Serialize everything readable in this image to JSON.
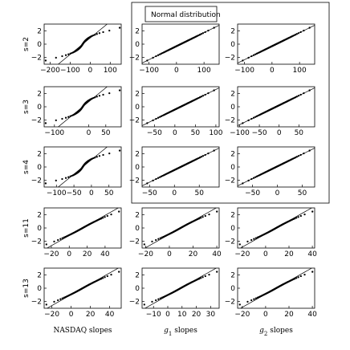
{
  "legend": {
    "label": "Normal distribution"
  },
  "row_labels": [
    "s=2",
    "s=3",
    "s=4",
    "s=11",
    "s=13"
  ],
  "column_labels": [
    {
      "main": "NASDAQ slopes",
      "sub": ""
    },
    {
      "main": "g",
      "sub": "1",
      "rest": " slopes"
    },
    {
      "main": "g",
      "sub": "2",
      "rest": " slopes"
    }
  ],
  "chart_data": {
    "type": "scatter",
    "description_of_axes": "Q-Q plots: x = sample quantiles of slopes, y = standard normal quantiles",
    "ylim": [
      -3,
      3
    ],
    "yticks": [
      -2,
      0,
      2
    ],
    "grid": false,
    "panels": [
      {
        "row": 0,
        "col": 0,
        "xlim": [
          -230,
          155
        ],
        "xticks": [
          -200,
          -100,
          0,
          100
        ],
        "xtick_labels": [
          "-200",
          "-100",
          "0",
          "100"
        ],
        "shape": "heavy"
      },
      {
        "row": 0,
        "col": 1,
        "xlim": [
          -125,
          155
        ],
        "xticks": [
          -100,
          0,
          100
        ],
        "xtick_labels": [
          "-100",
          "0",
          "100"
        ],
        "shape": "linear"
      },
      {
        "row": 0,
        "col": 2,
        "xlim": [
          -125,
          155
        ],
        "xticks": [
          -100,
          0,
          100
        ],
        "xtick_labels": [
          "-100",
          "0",
          "100"
        ],
        "shape": "linear"
      },
      {
        "row": 1,
        "col": 0,
        "xlim": [
          -130,
          95
        ],
        "xticks": [
          -100,
          0,
          50
        ],
        "xtick_labels": [
          "-100",
          "0",
          "50"
        ],
        "shape": "heavy"
      },
      {
        "row": 1,
        "col": 1,
        "xlim": [
          -80,
          108
        ],
        "xticks": [
          -50,
          0,
          50,
          100
        ],
        "xtick_labels": [
          "-50",
          "0",
          "50",
          "100"
        ],
        "shape": "linear"
      },
      {
        "row": 1,
        "col": 2,
        "xlim": [
          -105,
          90
        ],
        "xticks": [
          -100,
          -50,
          0,
          50
        ],
        "xtick_labels": [
          "-100",
          "-50",
          "0",
          "50"
        ],
        "shape": "linear"
      },
      {
        "row": 2,
        "col": 0,
        "xlim": [
          -135,
          85
        ],
        "xticks": [
          -100,
          -50,
          0,
          50
        ],
        "xtick_labels": [
          "-100",
          "-50",
          "0",
          "50"
        ],
        "shape": "heavy"
      },
      {
        "row": 2,
        "col": 1,
        "xlim": [
          -65,
          90
        ],
        "xticks": [
          -50,
          0,
          50
        ],
        "xtick_labels": [
          "-50",
          "0",
          "50"
        ],
        "shape": "linear"
      },
      {
        "row": 2,
        "col": 2,
        "xlim": [
          -80,
          75
        ],
        "xticks": [
          -50,
          0,
          50
        ],
        "xtick_labels": [
          "-50",
          "0",
          "50"
        ],
        "shape": "linear"
      },
      {
        "row": 3,
        "col": 0,
        "xlim": [
          -28,
          58
        ],
        "xticks": [
          -20,
          0,
          20,
          40
        ],
        "xtick_labels": [
          "-20",
          "0",
          "20",
          "40"
        ],
        "shape": "mild"
      },
      {
        "row": 3,
        "col": 1,
        "xlim": [
          -23,
          42
        ],
        "xticks": [
          -20,
          0,
          20,
          40
        ],
        "xtick_labels": [
          "-20",
          "0",
          "20",
          "40"
        ],
        "shape": "mild"
      },
      {
        "row": 3,
        "col": 2,
        "xlim": [
          -24,
          42
        ],
        "xticks": [
          -20,
          0,
          20,
          40
        ],
        "xtick_labels": [
          "-20",
          "0",
          "20",
          "40"
        ],
        "shape": "mild"
      },
      {
        "row": 4,
        "col": 0,
        "xlim": [
          -28,
          52
        ],
        "xticks": [
          -20,
          0,
          20,
          40
        ],
        "xtick_labels": [
          "-20",
          "0",
          "20",
          "40"
        ],
        "shape": "mild"
      },
      {
        "row": 4,
        "col": 1,
        "xlim": [
          -18,
          36
        ],
        "xticks": [
          -10,
          0,
          10,
          20,
          30
        ],
        "xtick_labels": [
          "-10",
          "0",
          "10",
          "20",
          "30"
        ],
        "shape": "mild"
      },
      {
        "row": 4,
        "col": 2,
        "xlim": [
          -24,
          42
        ],
        "xticks": [
          -20,
          0,
          20,
          40
        ],
        "xtick_labels": [
          "-20",
          "0",
          "20",
          "40"
        ],
        "shape": "mild"
      }
    ]
  }
}
